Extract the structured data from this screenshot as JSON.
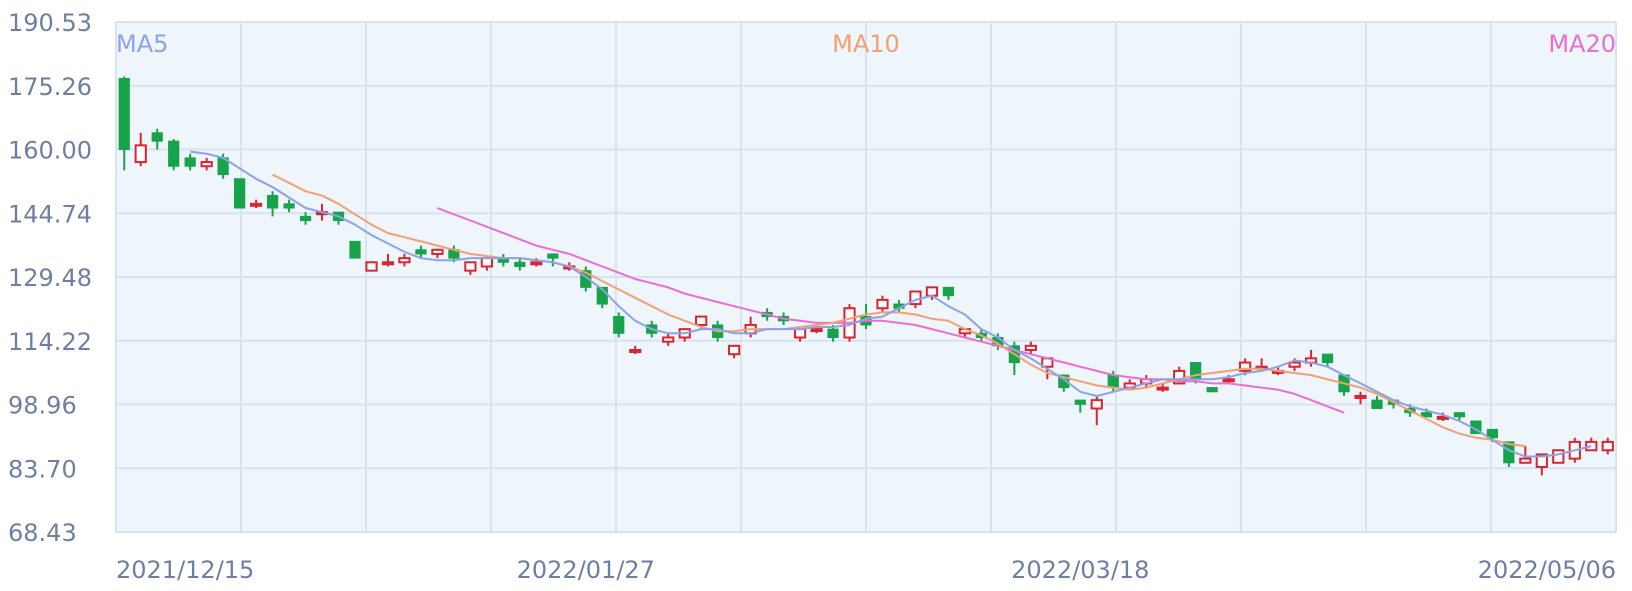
{
  "chart_data": {
    "type": "candlestick",
    "y_ticks": [
      "190.53",
      "175.26",
      "160.00",
      "144.74",
      "129.48",
      "114.22",
      "98.96",
      "83.70",
      "68.43"
    ],
    "ylim": [
      68.43,
      190.53
    ],
    "x_tick_labels": [
      {
        "label": "2021/12/15",
        "index": 0
      },
      {
        "label": "2022/01/27",
        "index": 28
      },
      {
        "label": "2022/03/18",
        "index": 58
      },
      {
        "label": "2022/05/06",
        "index": 90
      }
    ],
    "grid": true,
    "series_labels": {
      "ma5": "MA5",
      "ma10": "MA10",
      "ma20": "MA20"
    },
    "colors": {
      "up": "#dc2430",
      "down": "#17a34a",
      "ma5": "#8ca3e8",
      "ma10": "#f2a074",
      "ma20": "#ea6fd1",
      "grid": "#d9e3ee",
      "plot_bg": "#eef5fb",
      "axis_text": "#6e7fa3"
    },
    "candles": [
      [
        177,
        160,
        177.5,
        155
      ],
      [
        157,
        161,
        164,
        156
      ],
      [
        164,
        162,
        165,
        160
      ],
      [
        162,
        156,
        162.5,
        155
      ],
      [
        158,
        156,
        159,
        155
      ],
      [
        156,
        157,
        158,
        155
      ],
      [
        158,
        154,
        159,
        153
      ],
      [
        153,
        146,
        153,
        146
      ],
      [
        147,
        147,
        148,
        146
      ],
      [
        149,
        146,
        150,
        144
      ],
      [
        147,
        146,
        148,
        145
      ],
      [
        144,
        143,
        145,
        142
      ],
      [
        145,
        145,
        147,
        143
      ],
      [
        145,
        143,
        145,
        142
      ],
      [
        138,
        134,
        138,
        134
      ],
      [
        131,
        133,
        133,
        131
      ],
      [
        133,
        133,
        135,
        132
      ],
      [
        133,
        134,
        135,
        132
      ],
      [
        136,
        135,
        137,
        134
      ],
      [
        135,
        136,
        136,
        134
      ],
      [
        136,
        134,
        137,
        133
      ],
      [
        131,
        133,
        133,
        130
      ],
      [
        132,
        134,
        134,
        131
      ],
      [
        134,
        133,
        135,
        132
      ],
      [
        133,
        132,
        134,
        131
      ],
      [
        133,
        133,
        134,
        132
      ],
      [
        135,
        134,
        135,
        132
      ],
      [
        132,
        132,
        133,
        131
      ],
      [
        131,
        127,
        132,
        126
      ],
      [
        127,
        123,
        127,
        122
      ],
      [
        120,
        116,
        121,
        115
      ],
      [
        112,
        112,
        113,
        111
      ],
      [
        118,
        116,
        119,
        115
      ],
      [
        114,
        115,
        116,
        113
      ],
      [
        115,
        117,
        117,
        114
      ],
      [
        118,
        120,
        120,
        117
      ],
      [
        118,
        115,
        119,
        114
      ],
      [
        111,
        113,
        113,
        110
      ],
      [
        116,
        118,
        120,
        115
      ],
      [
        121,
        120,
        122,
        119
      ],
      [
        120,
        119,
        121,
        118
      ],
      [
        115,
        117,
        117,
        114
      ],
      [
        117,
        117,
        118,
        116
      ],
      [
        117,
        115,
        118,
        114
      ],
      [
        115,
        122,
        123,
        114
      ],
      [
        120,
        118,
        123,
        117
      ],
      [
        122,
        124,
        125,
        121
      ],
      [
        123,
        122,
        124,
        121
      ],
      [
        123,
        126,
        126,
        122
      ],
      [
        125,
        127,
        127,
        124
      ],
      [
        127,
        125,
        127,
        124
      ],
      [
        116,
        117,
        117,
        115
      ],
      [
        116,
        115,
        117,
        114
      ],
      [
        115,
        113,
        116,
        112
      ],
      [
        113,
        109,
        114,
        106
      ],
      [
        112,
        113,
        114,
        111
      ],
      [
        108,
        110,
        110,
        105
      ],
      [
        106,
        103,
        106,
        102
      ],
      [
        100,
        99,
        100,
        97
      ],
      [
        98,
        100,
        101,
        94
      ],
      [
        106,
        103,
        107,
        102
      ],
      [
        103,
        104,
        105,
        103
      ],
      [
        104,
        105,
        106,
        103
      ],
      [
        103,
        103,
        104,
        102
      ],
      [
        104,
        107,
        108,
        104
      ],
      [
        109,
        105,
        109,
        104
      ],
      [
        103,
        102,
        103,
        102
      ],
      [
        105,
        105,
        106,
        104
      ],
      [
        107,
        109,
        110,
        106
      ],
      [
        108,
        108,
        110,
        107
      ],
      [
        107,
        107,
        108,
        106
      ],
      [
        108,
        109,
        110,
        107
      ],
      [
        109,
        110,
        112,
        108
      ],
      [
        111,
        109,
        111,
        108
      ],
      [
        106,
        102,
        106,
        101
      ],
      [
        101,
        101,
        102,
        99
      ],
      [
        100,
        98,
        101,
        98
      ],
      [
        100,
        99,
        100,
        98
      ],
      [
        98,
        97,
        99,
        96
      ],
      [
        97,
        96,
        98,
        96
      ],
      [
        96,
        96,
        97,
        95
      ],
      [
        97,
        96,
        97,
        95
      ],
      [
        95,
        92,
        95,
        92
      ],
      [
        93,
        91,
        93,
        90
      ],
      [
        90,
        85,
        90,
        84
      ],
      [
        85,
        86,
        89,
        85
      ],
      [
        84,
        87,
        87,
        82
      ],
      [
        85,
        88,
        88,
        85
      ],
      [
        86,
        90,
        91,
        85
      ],
      [
        88,
        90,
        91,
        88
      ],
      [
        88,
        90,
        91,
        87
      ]
    ],
    "ma5": [
      [
        4,
        159.5
      ],
      [
        5,
        159
      ],
      [
        6,
        158
      ],
      [
        7,
        155.5
      ],
      [
        8,
        153
      ],
      [
        9,
        151
      ],
      [
        10,
        148.5
      ],
      [
        11,
        146
      ],
      [
        12,
        145
      ],
      [
        13,
        144
      ],
      [
        14,
        142
      ],
      [
        15,
        139.5
      ],
      [
        16,
        137.5
      ],
      [
        17,
        135.5
      ],
      [
        18,
        134
      ],
      [
        19,
        133.5
      ],
      [
        20,
        133.5
      ],
      [
        21,
        134
      ],
      [
        22,
        134
      ],
      [
        23,
        134
      ],
      [
        24,
        134
      ],
      [
        25,
        133.5
      ],
      [
        26,
        133
      ],
      [
        27,
        132
      ],
      [
        28,
        129.5
      ],
      [
        29,
        126.5
      ],
      [
        30,
        122.5
      ],
      [
        31,
        119
      ],
      [
        32,
        117
      ],
      [
        33,
        116
      ],
      [
        34,
        116
      ],
      [
        35,
        117
      ],
      [
        36,
        117
      ],
      [
        37,
        116
      ],
      [
        38,
        116
      ],
      [
        39,
        117
      ],
      [
        40,
        117
      ],
      [
        41,
        117
      ],
      [
        42,
        117.5
      ],
      [
        43,
        117.5
      ],
      [
        44,
        118
      ],
      [
        45,
        119.5
      ],
      [
        46,
        120
      ],
      [
        47,
        122
      ],
      [
        48,
        124
      ],
      [
        49,
        125
      ],
      [
        50,
        122.5
      ],
      [
        51,
        120.5
      ],
      [
        52,
        117
      ],
      [
        53,
        115
      ],
      [
        54,
        112
      ],
      [
        55,
        110
      ],
      [
        56,
        107.5
      ],
      [
        57,
        105
      ],
      [
        58,
        102
      ],
      [
        59,
        101
      ],
      [
        60,
        102
      ],
      [
        61,
        103
      ],
      [
        62,
        104
      ],
      [
        63,
        105
      ],
      [
        64,
        105
      ],
      [
        65,
        105
      ],
      [
        66,
        105
      ],
      [
        67,
        105.5
      ],
      [
        68,
        106.5
      ],
      [
        69,
        107
      ],
      [
        70,
        108
      ],
      [
        71,
        109.5
      ],
      [
        72,
        109
      ],
      [
        73,
        108
      ],
      [
        74,
        106
      ],
      [
        75,
        104
      ],
      [
        76,
        102
      ],
      [
        77,
        100
      ],
      [
        78,
        98.5
      ],
      [
        79,
        97.5
      ],
      [
        80,
        96.5
      ],
      [
        81,
        95
      ],
      [
        82,
        93
      ],
      [
        83,
        90.5
      ],
      [
        84,
        88
      ],
      [
        85,
        86.5
      ],
      [
        86,
        86.5
      ],
      [
        87,
        87
      ],
      [
        88,
        88
      ],
      [
        89,
        89
      ]
    ],
    "ma10": [
      [
        9,
        154
      ],
      [
        10,
        152
      ],
      [
        11,
        150
      ],
      [
        12,
        149
      ],
      [
        13,
        147
      ],
      [
        14,
        144.5
      ],
      [
        15,
        142
      ],
      [
        16,
        140
      ],
      [
        17,
        139
      ],
      [
        18,
        138
      ],
      [
        19,
        137
      ],
      [
        20,
        136
      ],
      [
        21,
        135
      ],
      [
        22,
        134.5
      ],
      [
        23,
        134
      ],
      [
        24,
        134
      ],
      [
        25,
        133.5
      ],
      [
        26,
        133
      ],
      [
        27,
        132
      ],
      [
        28,
        130.5
      ],
      [
        29,
        128.5
      ],
      [
        30,
        126.5
      ],
      [
        31,
        124.5
      ],
      [
        32,
        122.5
      ],
      [
        33,
        120.5
      ],
      [
        34,
        119
      ],
      [
        35,
        117.5
      ],
      [
        36,
        116.5
      ],
      [
        37,
        116.5
      ],
      [
        38,
        117
      ],
      [
        39,
        117
      ],
      [
        40,
        117
      ],
      [
        41,
        117.5
      ],
      [
        42,
        118
      ],
      [
        43,
        118.5
      ],
      [
        44,
        119.5
      ],
      [
        45,
        120.5
      ],
      [
        46,
        121
      ],
      [
        47,
        121
      ],
      [
        48,
        120.5
      ],
      [
        49,
        119.5
      ],
      [
        50,
        119
      ],
      [
        51,
        117
      ],
      [
        52,
        115.5
      ],
      [
        53,
        113.5
      ],
      [
        54,
        111
      ],
      [
        55,
        108.5
      ],
      [
        56,
        106.5
      ],
      [
        57,
        105.5
      ],
      [
        58,
        104.5
      ],
      [
        59,
        103.5
      ],
      [
        60,
        103
      ],
      [
        61,
        102.5
      ],
      [
        62,
        103
      ],
      [
        63,
        104
      ],
      [
        64,
        105
      ],
      [
        65,
        106
      ],
      [
        66,
        106.5
      ],
      [
        67,
        107
      ],
      [
        68,
        107.5
      ],
      [
        69,
        107.5
      ],
      [
        70,
        107
      ],
      [
        71,
        106.5
      ],
      [
        72,
        106
      ],
      [
        73,
        105
      ],
      [
        74,
        104
      ],
      [
        75,
        103
      ],
      [
        76,
        101.5
      ],
      [
        77,
        99.5
      ],
      [
        78,
        97.5
      ],
      [
        79,
        95.5
      ],
      [
        80,
        93.5
      ],
      [
        81,
        92
      ],
      [
        82,
        91
      ],
      [
        83,
        90.5
      ],
      [
        84,
        89.5
      ],
      [
        85,
        89
      ]
    ],
    "ma20": [
      [
        19,
        146
      ],
      [
        20,
        144.5
      ],
      [
        21,
        143
      ],
      [
        22,
        141.5
      ],
      [
        23,
        140
      ],
      [
        24,
        138.5
      ],
      [
        25,
        137
      ],
      [
        26,
        136
      ],
      [
        27,
        135
      ],
      [
        28,
        133.5
      ],
      [
        29,
        132
      ],
      [
        30,
        130.5
      ],
      [
        31,
        129
      ],
      [
        32,
        128
      ],
      [
        33,
        127
      ],
      [
        34,
        125.5
      ],
      [
        35,
        124.5
      ],
      [
        36,
        123.5
      ],
      [
        37,
        122.5
      ],
      [
        38,
        121.5
      ],
      [
        39,
        120.5
      ],
      [
        40,
        119.5
      ],
      [
        41,
        119
      ],
      [
        42,
        118.5
      ],
      [
        43,
        118.5
      ],
      [
        44,
        118.5
      ],
      [
        45,
        119
      ],
      [
        46,
        119
      ],
      [
        47,
        118.5
      ],
      [
        48,
        118
      ],
      [
        49,
        117
      ],
      [
        50,
        116
      ],
      [
        51,
        115
      ],
      [
        52,
        114
      ],
      [
        53,
        113
      ],
      [
        54,
        112
      ],
      [
        55,
        111
      ],
      [
        56,
        110
      ],
      [
        57,
        109
      ],
      [
        58,
        108
      ],
      [
        59,
        107
      ],
      [
        60,
        106
      ],
      [
        61,
        105.5
      ],
      [
        62,
        105
      ],
      [
        63,
        105
      ],
      [
        64,
        104.5
      ],
      [
        65,
        104.5
      ],
      [
        66,
        104
      ],
      [
        67,
        104
      ],
      [
        68,
        103.5
      ],
      [
        69,
        103
      ],
      [
        70,
        102.5
      ],
      [
        71,
        101.5
      ],
      [
        72,
        100
      ],
      [
        73,
        98.5
      ],
      [
        74,
        97
      ]
    ]
  }
}
